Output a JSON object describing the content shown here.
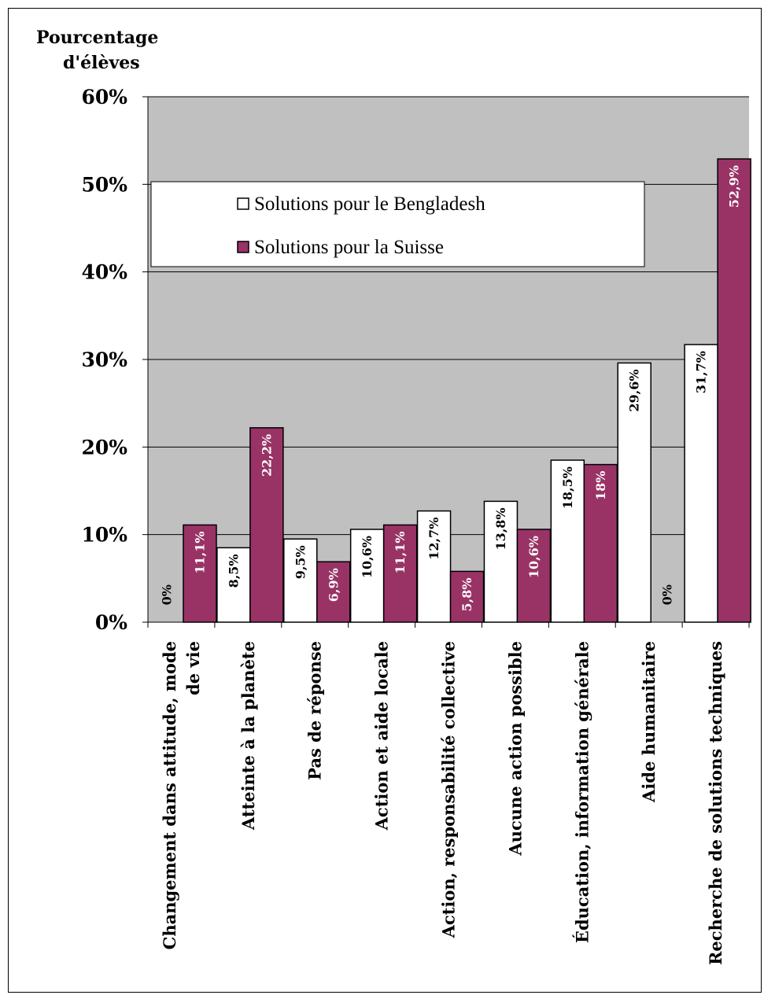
{
  "chart_data": {
    "type": "bar",
    "ylabel_line1": "Pourcentage",
    "ylabel_line2": "d'élèves",
    "ylim": [
      0,
      60
    ],
    "yticks": [
      "0%",
      "10%",
      "20%",
      "30%",
      "40%",
      "50%",
      "60%"
    ],
    "grid": true,
    "legend_position": "top-left",
    "categories": [
      "Changement dans attitude, mode de vie",
      "Atteinte à la planète",
      "Pas de réponse",
      "Action et aide locale",
      "Action, responsabilité collective",
      "Aucune action possible",
      "Éducation, information générale",
      "Aide humanitaire",
      "Recherche de solutions techniques"
    ],
    "category_lines": [
      [
        "Changement dans attitude, mode",
        "de vie"
      ],
      [
        "Atteinte à la planète"
      ],
      [
        "Pas de réponse"
      ],
      [
        "Action et aide locale"
      ],
      [
        "Action, responsabilité collective"
      ],
      [
        "Aucune action possible"
      ],
      [
        "Éducation, information générale"
      ],
      [
        "Aide humanitaire"
      ],
      [
        "Recherche de solutions techniques"
      ]
    ],
    "series": [
      {
        "name": "Solutions pour le Bengladesh",
        "color": "#ffffff",
        "values": [
          0,
          8.5,
          9.5,
          10.6,
          12.7,
          13.8,
          18.5,
          29.6,
          31.7
        ],
        "labels": [
          "0%",
          "8,5%",
          "9,5%",
          "10,6%",
          "12,7%",
          "13,8%",
          "18,5%",
          "29,6%",
          "31,7%"
        ]
      },
      {
        "name": "Solutions pour la Suisse",
        "color": "#993366",
        "values": [
          11.1,
          22.2,
          6.9,
          11.1,
          5.8,
          10.6,
          18,
          0,
          52.9
        ],
        "labels": [
          "11,1%",
          "22,2%",
          "6,9%",
          "11,1%",
          "5,8%",
          "10,6%",
          "18%",
          "0%",
          "52,9%"
        ]
      }
    ],
    "plot_background": "#c0c0c0"
  }
}
